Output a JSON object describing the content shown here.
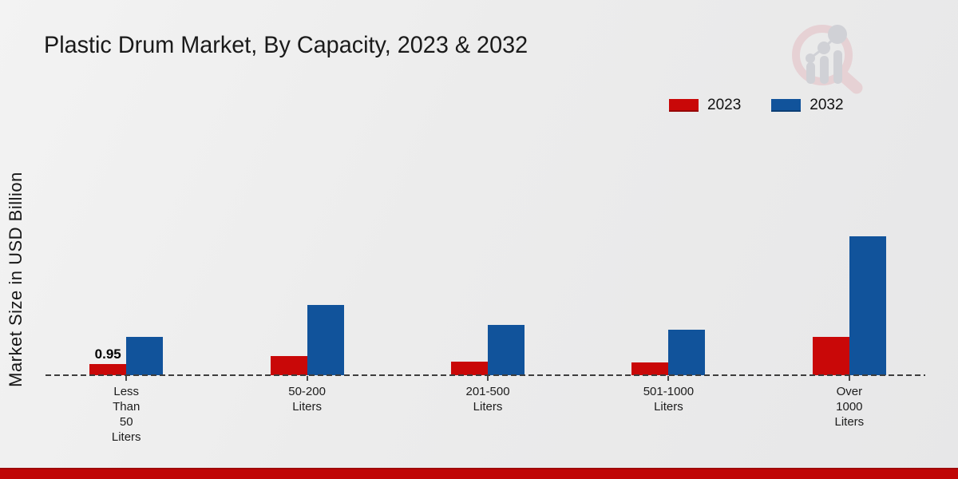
{
  "header": {
    "title": "Plastic Drum Market, By Capacity, 2023 & 2032"
  },
  "watermark": {
    "name": "market-research-logo-watermark",
    "ring_color": "#e6cdd1",
    "glyph_color": "#cccdd3"
  },
  "chart_data": {
    "type": "bar",
    "title": "Plastic Drum Market, By Capacity, 2023 & 2032",
    "ylabel": "Market Size in USD Billion",
    "xlabel": "",
    "categories": [
      "Less Than 50 Liters",
      "50-200 Liters",
      "201-500 Liters",
      "501-1000 Liters",
      "Over 1000 Liters"
    ],
    "category_label_lines": [
      [
        "Less",
        "Than",
        "50",
        "Liters"
      ],
      [
        "50-200",
        "Liters"
      ],
      [
        "201-500",
        "Liters"
      ],
      [
        "501-1000",
        "Liters"
      ],
      [
        "Over",
        "1000",
        "Liters"
      ]
    ],
    "series": [
      {
        "name": "2023",
        "color": "#c90808",
        "values": [
          0.95,
          1.7,
          1.2,
          1.1,
          3.4
        ]
      },
      {
        "name": "2032",
        "color": "#11539b",
        "values": [
          3.4,
          6.2,
          4.45,
          4.0,
          12.25
        ]
      }
    ],
    "bar_labels": [
      {
        "series_index": 0,
        "category_index": 0,
        "text": "0.95"
      }
    ],
    "ylim": [
      0,
      13.5
    ],
    "grid": false,
    "legend_position": "top-right",
    "baseline_style": "dashed"
  },
  "footer": {
    "accent_color": "#c00505"
  }
}
